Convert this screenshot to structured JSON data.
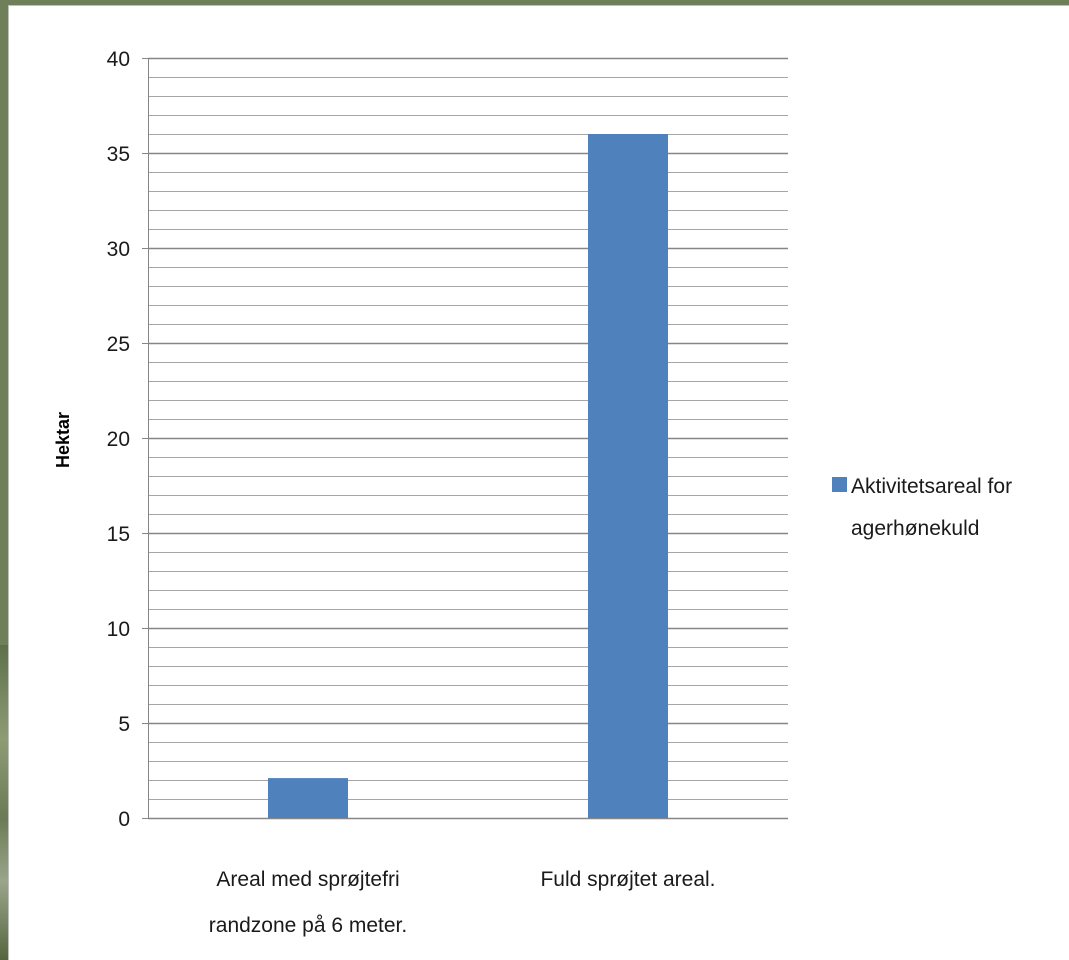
{
  "chart_data": {
    "type": "bar",
    "title": "",
    "xlabel": "",
    "ylabel": "Hektar",
    "ylim": [
      0,
      40
    ],
    "major_ticks": [
      0,
      5,
      10,
      15,
      20,
      25,
      30,
      35,
      40
    ],
    "minor_step": 1,
    "grid": true,
    "legend_position": "right",
    "categories": [
      [
        "Areal med sprøjtefri",
        "randzone på 6 meter."
      ],
      [
        "Fuld sprøjtet areal."
      ]
    ],
    "series": [
      {
        "name": "Aktivitetsareal for agerhønekuld",
        "legend_lines": [
          "Aktivitetsareal for",
          "agerhønekuld"
        ],
        "values": [
          2.1,
          36
        ],
        "color": "#4f81bd"
      }
    ]
  }
}
